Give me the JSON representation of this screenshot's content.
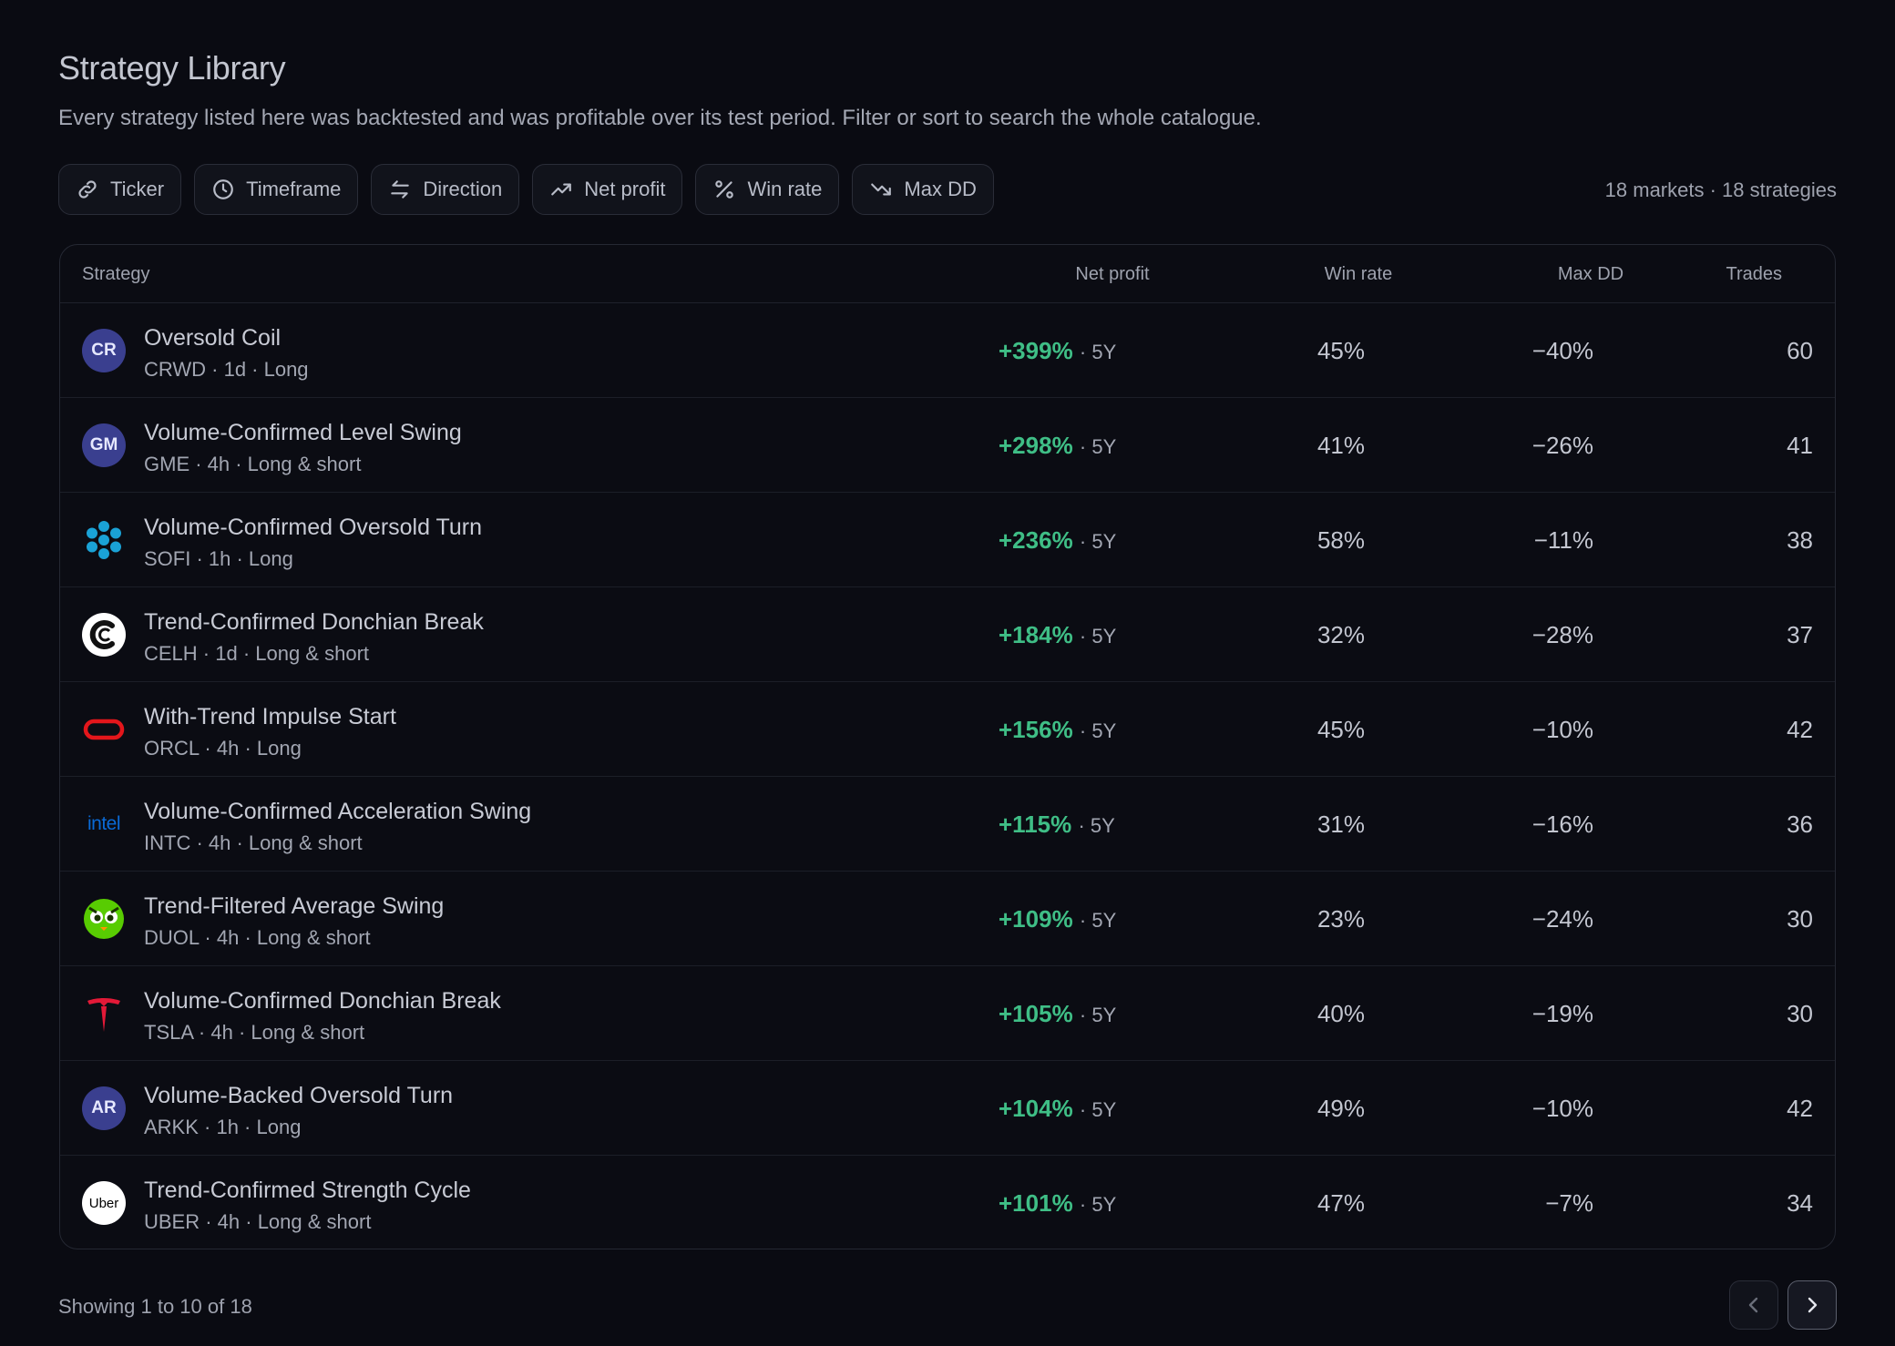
{
  "header": {
    "title": "Strategy Library",
    "subtitle": "Every strategy listed here was backtested and was profitable over its test period. Filter or sort to search the whole catalogue."
  },
  "filters": [
    {
      "label": "Ticker",
      "icon": "link-icon"
    },
    {
      "label": "Timeframe",
      "icon": "clock-icon"
    },
    {
      "label": "Direction",
      "icon": "arrows-swap-icon"
    },
    {
      "label": "Net profit",
      "icon": "trend-up-icon"
    },
    {
      "label": "Win rate",
      "icon": "percent-icon"
    },
    {
      "label": "Max DD",
      "icon": "trend-down-icon"
    }
  ],
  "counts": "18 markets · 18 strategies",
  "table": {
    "columns": {
      "strategy": "Strategy",
      "net_profit": "Net profit",
      "win_rate": "Win rate",
      "max_dd": "Max DD",
      "trades": "Trades"
    },
    "rows": [
      {
        "logo": "CR",
        "logo_type": "badge",
        "name": "Oversold Coil",
        "meta": "CRWD · 1d · Long",
        "net": "+399%",
        "period": "· 5Y",
        "win": "45%",
        "dd": "−40%",
        "trades": "60"
      },
      {
        "logo": "GM",
        "logo_type": "badge",
        "name": "Volume-Confirmed Level Swing",
        "meta": "GME · 4h · Long & short",
        "net": "+298%",
        "period": "· 5Y",
        "win": "41%",
        "dd": "−26%",
        "trades": "41"
      },
      {
        "logo": "",
        "logo_type": "sofi",
        "name": "Volume-Confirmed Oversold Turn",
        "meta": "SOFI · 1h · Long",
        "net": "+236%",
        "period": "· 5Y",
        "win": "58%",
        "dd": "−11%",
        "trades": "38"
      },
      {
        "logo": "",
        "logo_type": "celh",
        "name": "Trend-Confirmed Donchian Break",
        "meta": "CELH · 1d · Long & short",
        "net": "+184%",
        "period": "· 5Y",
        "win": "32%",
        "dd": "−28%",
        "trades": "37"
      },
      {
        "logo": "",
        "logo_type": "orcl",
        "name": "With-Trend Impulse Start",
        "meta": "ORCL · 4h · Long",
        "net": "+156%",
        "period": "· 5Y",
        "win": "45%",
        "dd": "−10%",
        "trades": "42"
      },
      {
        "logo": "intel",
        "logo_type": "intc",
        "name": "Volume-Confirmed Acceleration Swing",
        "meta": "INTC · 4h · Long & short",
        "net": "+115%",
        "period": "· 5Y",
        "win": "31%",
        "dd": "−16%",
        "trades": "36"
      },
      {
        "logo": "",
        "logo_type": "duol",
        "name": "Trend-Filtered Average Swing",
        "meta": "DUOL · 4h · Long & short",
        "net": "+109%",
        "period": "· 5Y",
        "win": "23%",
        "dd": "−24%",
        "trades": "30"
      },
      {
        "logo": "",
        "logo_type": "tsla",
        "name": "Volume-Confirmed Donchian Break",
        "meta": "TSLA · 4h · Long & short",
        "net": "+105%",
        "period": "· 5Y",
        "win": "40%",
        "dd": "−19%",
        "trades": "30"
      },
      {
        "logo": "AR",
        "logo_type": "badge",
        "name": "Volume-Backed Oversold Turn",
        "meta": "ARKK · 1h · Long",
        "net": "+104%",
        "period": "· 5Y",
        "win": "49%",
        "dd": "−10%",
        "trades": "42"
      },
      {
        "logo": "Uber",
        "logo_type": "uber",
        "name": "Trend-Confirmed Strength Cycle",
        "meta": "UBER · 4h · Long & short",
        "net": "+101%",
        "period": "· 5Y",
        "win": "47%",
        "dd": "−7%",
        "trades": "34"
      }
    ]
  },
  "footer": {
    "showing": "Showing 1 to 10 of 18",
    "prev_icon": "chevron-left-icon",
    "next_icon": "chevron-right-icon"
  },
  "colors": {
    "background": "#0a0b12",
    "profit": "#3fbe86",
    "badge": "#3a3f8f"
  }
}
